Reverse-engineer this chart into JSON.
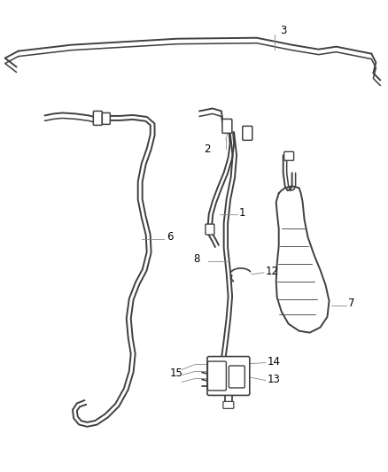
{
  "bg_color": "#ffffff",
  "line_color": "#404040",
  "label_color": "#000000",
  "lw": 1.4,
  "thin_lw": 0.9,
  "callout_lw": 0.6,
  "callout_color": "#888888",
  "font_size": 8.5
}
